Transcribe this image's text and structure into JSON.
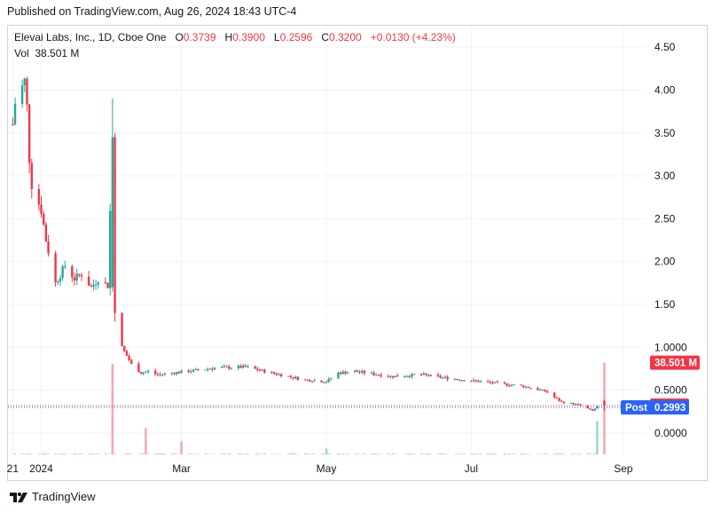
{
  "header": {
    "published": "Published on TradingView.com, Aug 26, 2024 18:43 UTC-4"
  },
  "legend": {
    "symbol": "Elevai Labs, Inc., 1D, Cboe One",
    "o_label": "O",
    "o_value": "0.3739",
    "h_label": "H",
    "h_value": "0.3900",
    "l_label": "L",
    "l_value": "0.2596",
    "c_label": "C",
    "c_value": "0.3200",
    "change": "+0.0130 (+4.23%)",
    "vol_label": "Vol",
    "vol_value": "38.501 M"
  },
  "footer": {
    "brand": "TradingView"
  },
  "colors": {
    "up": "#26a69a",
    "down": "#f23645",
    "grid": "#f0f3fa",
    "post": "#2962ff",
    "vol_up": "#9fd8d2",
    "vol_down": "#f7a9b0"
  },
  "chart_data": {
    "type": "candlestick",
    "ylim": [
      -0.25,
      4.75
    ],
    "y_ticks": [
      "0.0000",
      "0.5000",
      "1.0000",
      "1.50",
      "2.00",
      "2.50",
      "3.00",
      "3.50",
      "4.00",
      "4.50"
    ],
    "y_tick_values": [
      0,
      0.5,
      1.0,
      1.5,
      2.0,
      2.5,
      3.0,
      3.5,
      4.0,
      4.5
    ],
    "x_ticks": [
      {
        "label": "21",
        "date": "2023-12-21"
      },
      {
        "label": "2024",
        "date": "2024-01-02"
      },
      {
        "label": "Mar",
        "date": "2024-03-01"
      },
      {
        "label": "May",
        "date": "2024-05-01"
      },
      {
        "label": "Jul",
        "date": "2024-07-01"
      },
      {
        "label": "Sep",
        "date": "2024-09-03"
      }
    ],
    "price_path": [
      [
        "2023-12-21",
        3.6
      ],
      [
        "2023-12-22",
        3.85
      ],
      [
        "2023-12-26",
        4.1
      ],
      [
        "2023-12-27",
        3.8
      ],
      [
        "2023-12-28",
        3.2
      ],
      [
        "2023-12-29",
        2.9
      ],
      [
        "2024-01-02",
        2.6
      ],
      [
        "2024-01-04",
        2.25
      ],
      [
        "2024-01-08",
        1.75
      ],
      [
        "2024-01-10",
        1.85
      ],
      [
        "2024-01-12",
        1.95
      ],
      [
        "2024-01-16",
        1.8
      ],
      [
        "2024-01-19",
        1.85
      ],
      [
        "2024-01-23",
        1.7
      ],
      [
        "2024-01-26",
        1.8
      ],
      [
        "2024-01-30",
        1.72
      ],
      [
        "2024-02-01",
        3.45
      ],
      [
        "2024-02-02",
        1.4
      ],
      [
        "2024-02-05",
        1.0
      ],
      [
        "2024-02-07",
        0.9
      ],
      [
        "2024-02-09",
        0.8
      ],
      [
        "2024-02-13",
        0.7
      ],
      [
        "2024-02-16",
        0.72
      ],
      [
        "2024-02-20",
        0.68
      ],
      [
        "2024-02-26",
        0.7
      ],
      [
        "2024-03-04",
        0.72
      ],
      [
        "2024-03-15",
        0.76
      ],
      [
        "2024-03-28",
        0.77
      ],
      [
        "2024-04-08",
        0.7
      ],
      [
        "2024-04-22",
        0.62
      ],
      [
        "2024-05-01",
        0.6
      ],
      [
        "2024-05-06",
        0.7
      ],
      [
        "2024-05-13",
        0.72
      ],
      [
        "2024-05-28",
        0.66
      ],
      [
        "2024-06-10",
        0.68
      ],
      [
        "2024-06-24",
        0.63
      ],
      [
        "2024-07-08",
        0.59
      ],
      [
        "2024-07-22",
        0.55
      ],
      [
        "2024-08-01",
        0.49
      ],
      [
        "2024-08-08",
        0.36
      ],
      [
        "2024-08-15",
        0.33
      ],
      [
        "2024-08-21",
        0.26
      ],
      [
        "2024-08-23",
        0.307
      ],
      [
        "2024-08-26",
        0.32
      ]
    ],
    "last_candle": {
      "date": "2024-08-26",
      "open": 0.3739,
      "high": 0.39,
      "low": 0.2596,
      "close": 0.32
    },
    "volume_spikes": [
      {
        "date": "2024-02-01",
        "dir": "down",
        "value": 38.0
      },
      {
        "date": "2024-02-15",
        "dir": "down",
        "value": 11.0
      },
      {
        "date": "2024-03-01",
        "dir": "down",
        "value": 5.5
      },
      {
        "date": "2024-05-01",
        "dir": "up",
        "value": 2.5
      },
      {
        "date": "2024-08-23",
        "dir": "up",
        "value": 14.0
      },
      {
        "date": "2024-08-26",
        "dir": "down",
        "value": 38.501
      }
    ],
    "volume_axis_max": 38.501,
    "labels": {
      "volume": "38.501 M",
      "close": "0.3200",
      "post_label": "Post",
      "post_value": "0.2993"
    },
    "close_value": 0.32,
    "post_value": 0.2993,
    "grid": true
  }
}
